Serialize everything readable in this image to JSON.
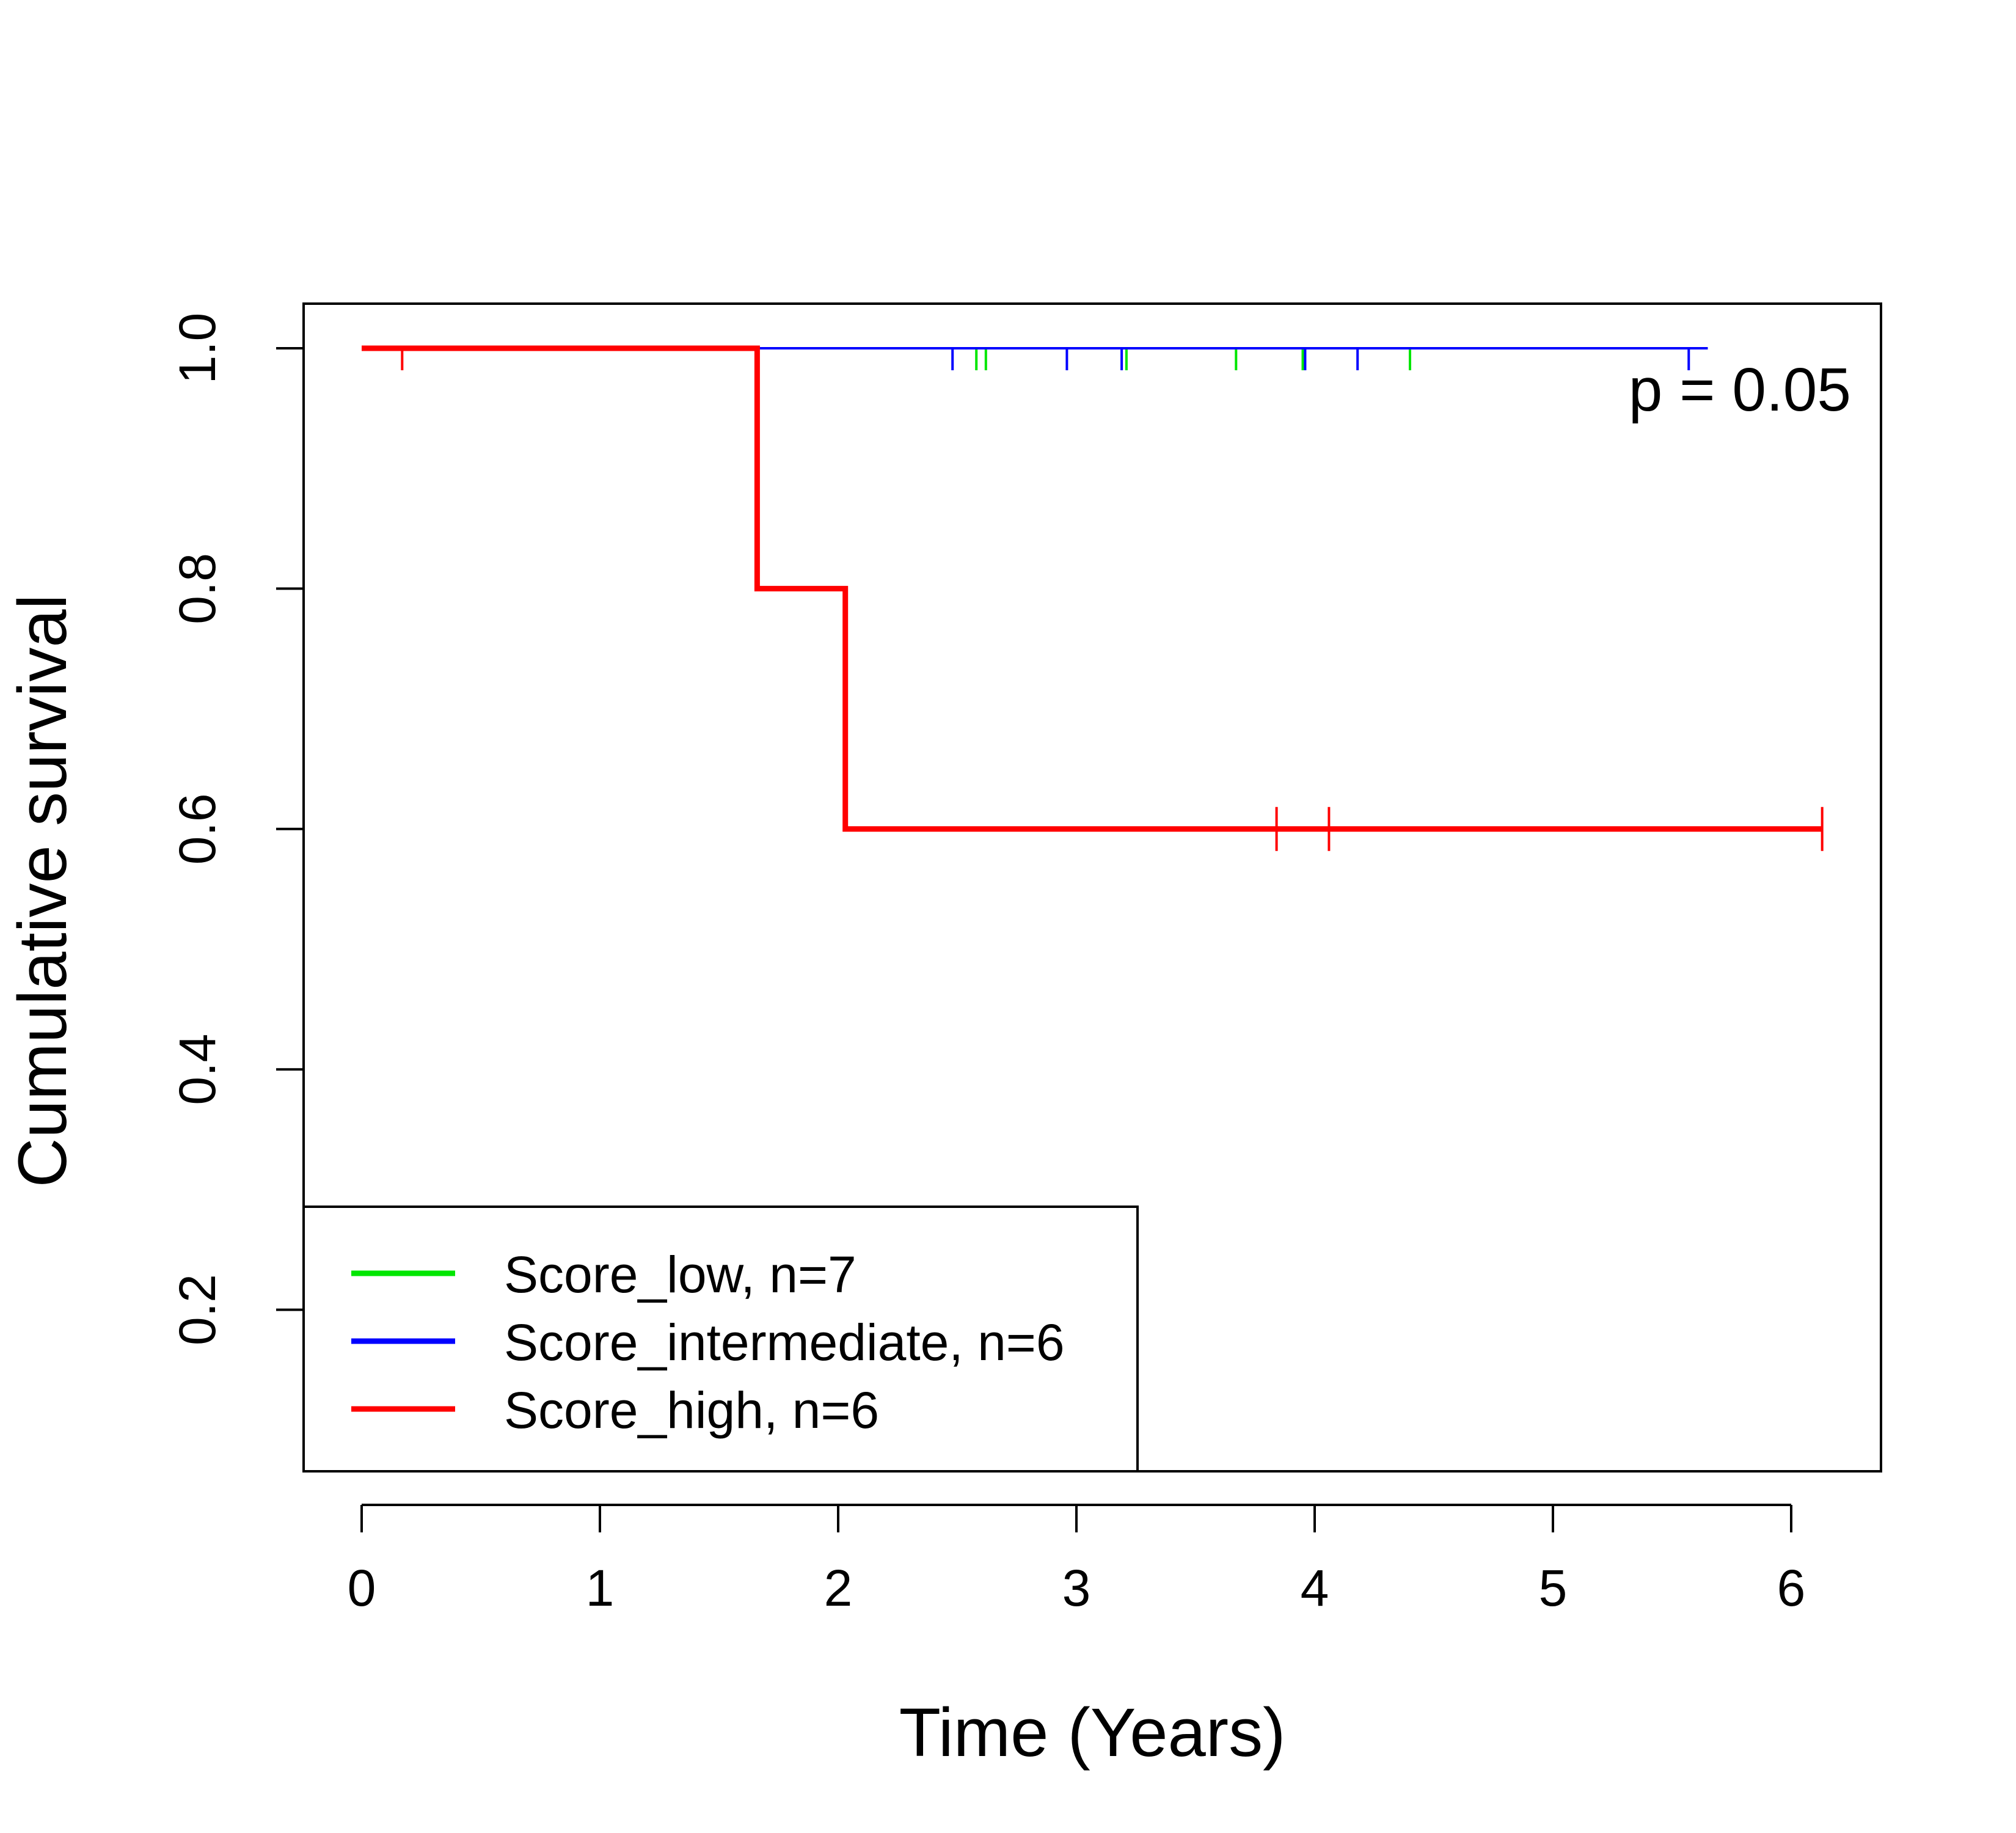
{
  "chart_data": {
    "type": "line",
    "subtype": "kaplan-meier-step",
    "xlabel": "Time (Years)",
    "ylabel": "Cumulative survival",
    "xlim": [
      0,
      6
    ],
    "ylim": [
      0.2,
      1.0
    ],
    "xticks": [
      0,
      1,
      2,
      3,
      4,
      5,
      6
    ],
    "yticks": [
      "0.2",
      "0.4",
      "0.6",
      "0.8",
      "1.0"
    ],
    "grid": false,
    "annotation": "p = 0.05",
    "legend_position": "bottom-left",
    "series": [
      {
        "name": "Score_low, n=7",
        "color": "#00e600",
        "steps": [
          [
            0,
            1.0
          ],
          [
            4.4,
            1.0
          ]
        ],
        "censor_times": [
          2.58,
          2.62,
          3.21,
          3.67,
          3.95,
          4.4
        ]
      },
      {
        "name": "Score_intermediate, n=6",
        "color": "#0000ff",
        "steps": [
          [
            1.65,
            1.0
          ],
          [
            5.65,
            1.0
          ]
        ],
        "censor_times": [
          2.48,
          2.96,
          3.19,
          3.96,
          4.18,
          5.57
        ]
      },
      {
        "name": "Score_high, n=6",
        "color": "#ff0000",
        "steps": [
          [
            0,
            1.0
          ],
          [
            1.66,
            1.0
          ],
          [
            1.66,
            0.8
          ],
          [
            2.03,
            0.8
          ],
          [
            2.03,
            0.6
          ],
          [
            6.13,
            0.6
          ]
        ],
        "censor_times": [
          0.17,
          3.84,
          4.06,
          6.13
        ]
      }
    ]
  }
}
